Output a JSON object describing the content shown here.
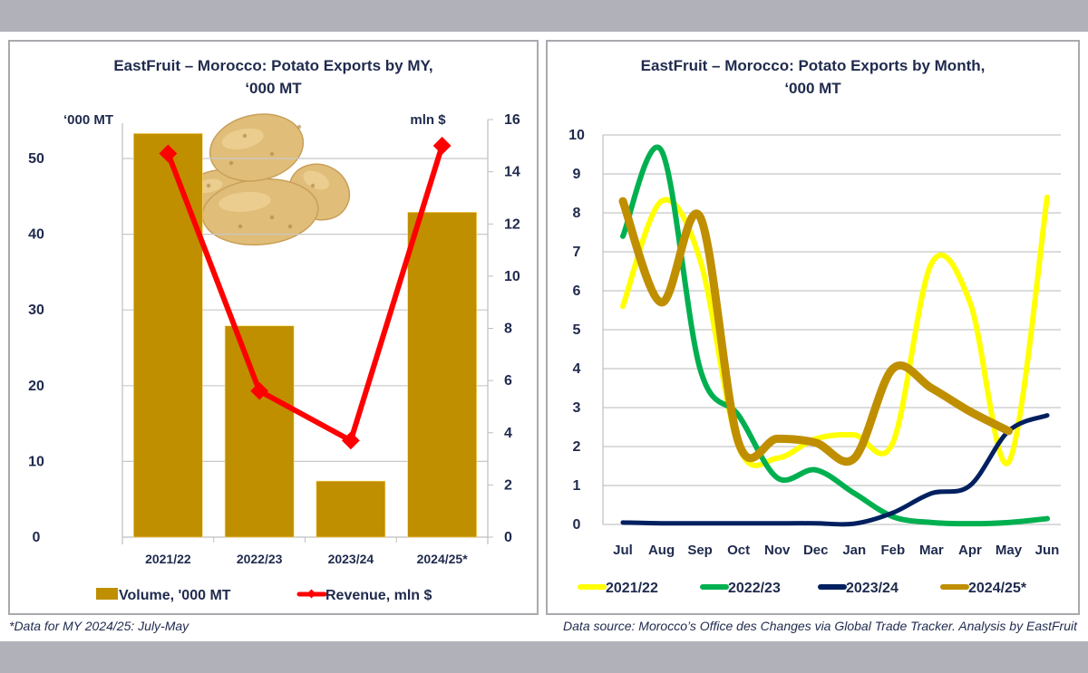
{
  "left_panel": {
    "title_line1": "EastFruit – Morocco: Potato Exports by MY,",
    "title_line2": "‘000 MT",
    "left_axis_label": "‘000 MT",
    "right_axis_label": "mln $",
    "legend": {
      "volume": "Volume, '000 MT",
      "revenue": "Revenue, mln $"
    }
  },
  "right_panel": {
    "title_line1": "EastFruit – Morocco: Potato Exports by Month,",
    "title_line2": "‘000 MT"
  },
  "footnotes": {
    "left": "*Data for MY 2024/25: July-May",
    "right": "Data source: Morocco’s Office des Changes via Global Trade Tracker. Analysis by  EastFruit"
  },
  "colors": {
    "bar": "#bf8f00",
    "revenue_line": "#ff0000",
    "axis_text": "#1f2a4d",
    "grid": "#c8c8c8",
    "series_2021_22": "#ffff00",
    "series_2022_23": "#00b050",
    "series_2023_24": "#002060",
    "series_2024_25": "#bf8f00"
  },
  "chart_data": [
    {
      "type": "bar",
      "title": "EastFruit – Morocco: Potato Exports by MY, ‘000 MT",
      "categories": [
        "2021/22",
        "2022/23",
        "2023/24",
        "2024/25*"
      ],
      "series": [
        {
          "name": "Volume, '000 MT",
          "type": "bar",
          "axis": "left",
          "values": [
            53.3,
            27.9,
            7.4,
            42.9
          ]
        },
        {
          "name": "Revenue, mln $",
          "type": "line",
          "axis": "right",
          "values": [
            14.7,
            5.6,
            3.7,
            15.0
          ]
        }
      ],
      "ylabel": "‘000 MT",
      "ylabel_right": "mln $",
      "ylim": [
        0,
        55
      ],
      "yticks": [
        0,
        10,
        20,
        30,
        40,
        50
      ],
      "ylim_right": [
        0,
        16
      ],
      "yticks_right": [
        0,
        2,
        4,
        6,
        8,
        10,
        12,
        14,
        16
      ],
      "grid": true,
      "legend_position": "bottom"
    },
    {
      "type": "line",
      "title": "EastFruit – Morocco: Potato Exports by Month, ‘000 MT",
      "categories": [
        "Jul",
        "Aug",
        "Sep",
        "Oct",
        "Nov",
        "Dec",
        "Jan",
        "Feb",
        "Mar",
        "Apr",
        "May",
        "Jun"
      ],
      "series": [
        {
          "name": "2021/22",
          "values": [
            5.6,
            8.3,
            6.8,
            2.0,
            1.7,
            2.2,
            2.3,
            2.1,
            6.7,
            5.7,
            1.6,
            8.4
          ]
        },
        {
          "name": "2022/23",
          "values": [
            7.4,
            9.6,
            4.0,
            2.8,
            1.2,
            1.4,
            0.8,
            0.2,
            0.05,
            0.02,
            0.05,
            0.15
          ]
        },
        {
          "name": "2023/24",
          "values": [
            0.05,
            0.03,
            0.03,
            0.03,
            0.03,
            0.03,
            0.02,
            0.3,
            0.8,
            1.0,
            2.4,
            2.8
          ]
        },
        {
          "name": "2024/25*",
          "values": [
            8.3,
            5.7,
            7.9,
            2.1,
            2.2,
            2.1,
            1.7,
            4.0,
            3.5,
            2.9,
            2.4,
            null
          ]
        }
      ],
      "xlabel": "",
      "ylabel": "",
      "ylim": [
        0,
        10
      ],
      "yticks": [
        0,
        1,
        2,
        3,
        4,
        5,
        6,
        7,
        8,
        9,
        10
      ],
      "grid": true,
      "legend_position": "bottom"
    }
  ]
}
